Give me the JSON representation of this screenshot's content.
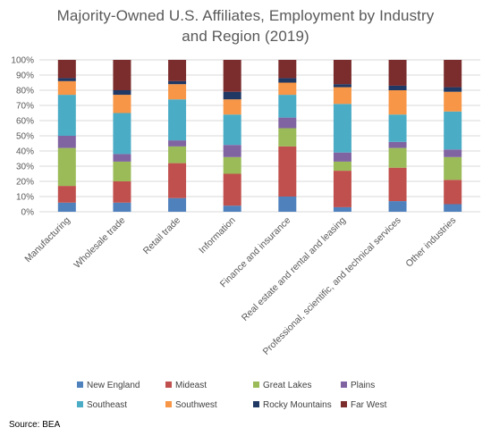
{
  "chart_data": {
    "type": "bar",
    "stacked": true,
    "percent_stacked": true,
    "title_lines": [
      "Majority-Owned U.S. Affiliates, Employment by Industry",
      "and Region (2019)"
    ],
    "xlabel": "",
    "ylabel": "",
    "ylim": [
      0,
      100
    ],
    "y_ticks": [
      "0%",
      "10%",
      "20%",
      "30%",
      "40%",
      "50%",
      "60%",
      "70%",
      "80%",
      "90%",
      "100%"
    ],
    "categories": [
      "Manufacturing",
      "Wholesale trade",
      "Retail trade",
      "Information",
      "Finance and insurance",
      "Real estate and rental and leasing",
      "Professional, scientific, and technical services",
      "Other industries"
    ],
    "series": [
      {
        "name": "New England",
        "color": "#4f81bd",
        "values": [
          6,
          6,
          9,
          4,
          10,
          3,
          7,
          5
        ]
      },
      {
        "name": "Mideast",
        "color": "#c0504d",
        "values": [
          11,
          14,
          23,
          21,
          33,
          24,
          22,
          16
        ]
      },
      {
        "name": "Great Lakes",
        "color": "#9bbb59",
        "values": [
          25,
          13,
          11,
          11,
          12,
          6,
          13,
          15
        ]
      },
      {
        "name": "Plains",
        "color": "#8064a2",
        "values": [
          8,
          5,
          4,
          8,
          7,
          6,
          4,
          5
        ]
      },
      {
        "name": "Southeast",
        "color": "#4bacc6",
        "values": [
          27,
          27,
          27,
          20,
          15,
          32,
          18,
          25
        ]
      },
      {
        "name": "Southwest",
        "color": "#f79646",
        "values": [
          9,
          12,
          10,
          10,
          8,
          11,
          16,
          13
        ]
      },
      {
        "name": "Rocky Mountains",
        "color": "#1f3864",
        "values": [
          2,
          3,
          2,
          5,
          3,
          2,
          3,
          3
        ]
      },
      {
        "name": "Far West",
        "color": "#7b2c2c",
        "values": [
          12,
          20,
          14,
          21,
          12,
          16,
          17,
          18
        ]
      }
    ],
    "grid": true,
    "legend_position": "bottom"
  },
  "source": "Source: BEA"
}
